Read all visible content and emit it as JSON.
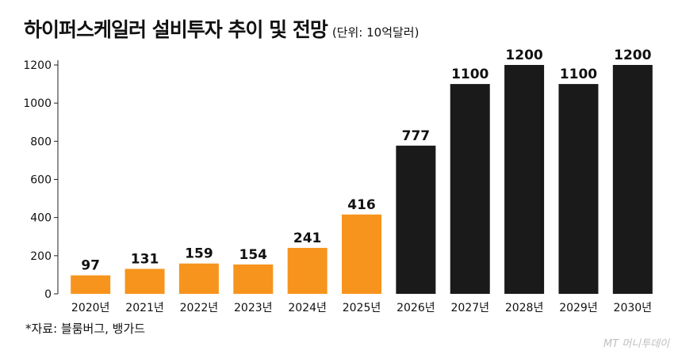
{
  "header": {
    "title": "하이퍼스케일러 설비투자 추이 및 전망",
    "unit": "(단위: 10억달러)"
  },
  "footer": {
    "source": "*자료: 블룸버그, 뱅가드",
    "watermark": "MT 머니투데이"
  },
  "colors": {
    "actual": "#f7941d",
    "forecast": "#1a1a1a"
  },
  "chart_data": {
    "type": "bar",
    "title": "하이퍼스케일러 설비투자 추이 및 전망",
    "xlabel": "",
    "ylabel": "",
    "ylim": [
      0,
      1200
    ],
    "yticks": [
      0,
      200,
      400,
      600,
      800,
      1000,
      1200
    ],
    "grid": false,
    "categories": [
      "2020년",
      "2021년",
      "2022년",
      "2023년",
      "2024년",
      "2025년",
      "2026년",
      "2027년",
      "2028년",
      "2029년",
      "2030년"
    ],
    "values": [
      97,
      131,
      159,
      154,
      241,
      416,
      777,
      1100,
      1200,
      1100,
      1200
    ],
    "data_labels": [
      "97",
      "131",
      "159",
      "154",
      "241",
      "416",
      "777",
      "1100",
      "1200",
      "1100",
      "1200"
    ],
    "bar_colors": [
      "#f7941d",
      "#f7941d",
      "#f7941d",
      "#f7941d",
      "#f7941d",
      "#f7941d",
      "#1a1a1a",
      "#1a1a1a",
      "#1a1a1a",
      "#1a1a1a",
      "#1a1a1a"
    ]
  }
}
